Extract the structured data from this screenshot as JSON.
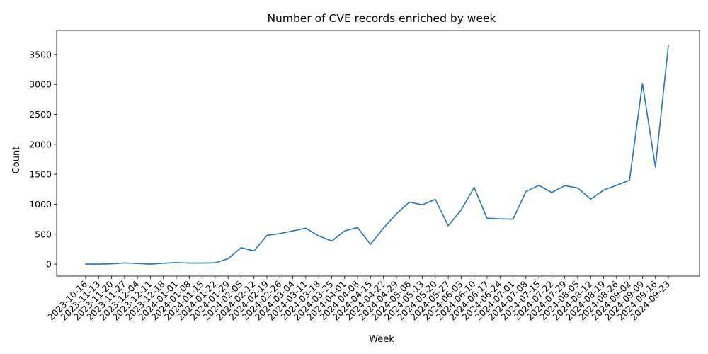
{
  "chart_data": {
    "type": "line",
    "title": "Number of CVE records enriched by week",
    "xlabel": "Week",
    "ylabel": "Count",
    "ylim": [
      -200,
      3900
    ],
    "yticks": [
      0,
      500,
      1000,
      1500,
      2000,
      2500,
      3000,
      3500
    ],
    "grid": false,
    "legend": "none",
    "line_color": "#1f77b4",
    "categories": [
      "2023-10-16",
      "2023-11-13",
      "2023-11-20",
      "2023-11-27",
      "2023-12-04",
      "2023-12-11",
      "2023-12-18",
      "2024-01-01",
      "2024-01-08",
      "2024-01-15",
      "2024-01-22",
      "2024-01-29",
      "2024-02-05",
      "2024-02-12",
      "2024-02-19",
      "2024-02-26",
      "2024-03-04",
      "2024-03-11",
      "2024-03-18",
      "2024-03-25",
      "2024-04-01",
      "2024-04-08",
      "2024-04-15",
      "2024-04-22",
      "2024-04-29",
      "2024-05-06",
      "2024-05-13",
      "2024-05-20",
      "2024-05-27",
      "2024-06-03",
      "2024-06-10",
      "2024-06-17",
      "2024-06-24",
      "2024-07-01",
      "2024-07-08",
      "2024-07-15",
      "2024-07-22",
      "2024-07-29",
      "2024-08-05",
      "2024-08-12",
      "2024-08-19",
      "2024-08-26",
      "2024-09-02",
      "2024-09-09",
      "2024-09-16",
      "2024-09-23"
    ],
    "series": [
      {
        "name": "Count",
        "values": [
          0,
          0,
          5,
          20,
          10,
          0,
          15,
          25,
          18,
          18,
          22,
          90,
          275,
          220,
          480,
          510,
          555,
          600,
          470,
          385,
          555,
          610,
          330,
          600,
          840,
          1035,
          990,
          1080,
          640,
          905,
          1280,
          765,
          755,
          750,
          1210,
          1315,
          1195,
          1310,
          1270,
          1085,
          1235,
          1315,
          1400,
          3015,
          1620,
          3650
        ]
      }
    ]
  }
}
